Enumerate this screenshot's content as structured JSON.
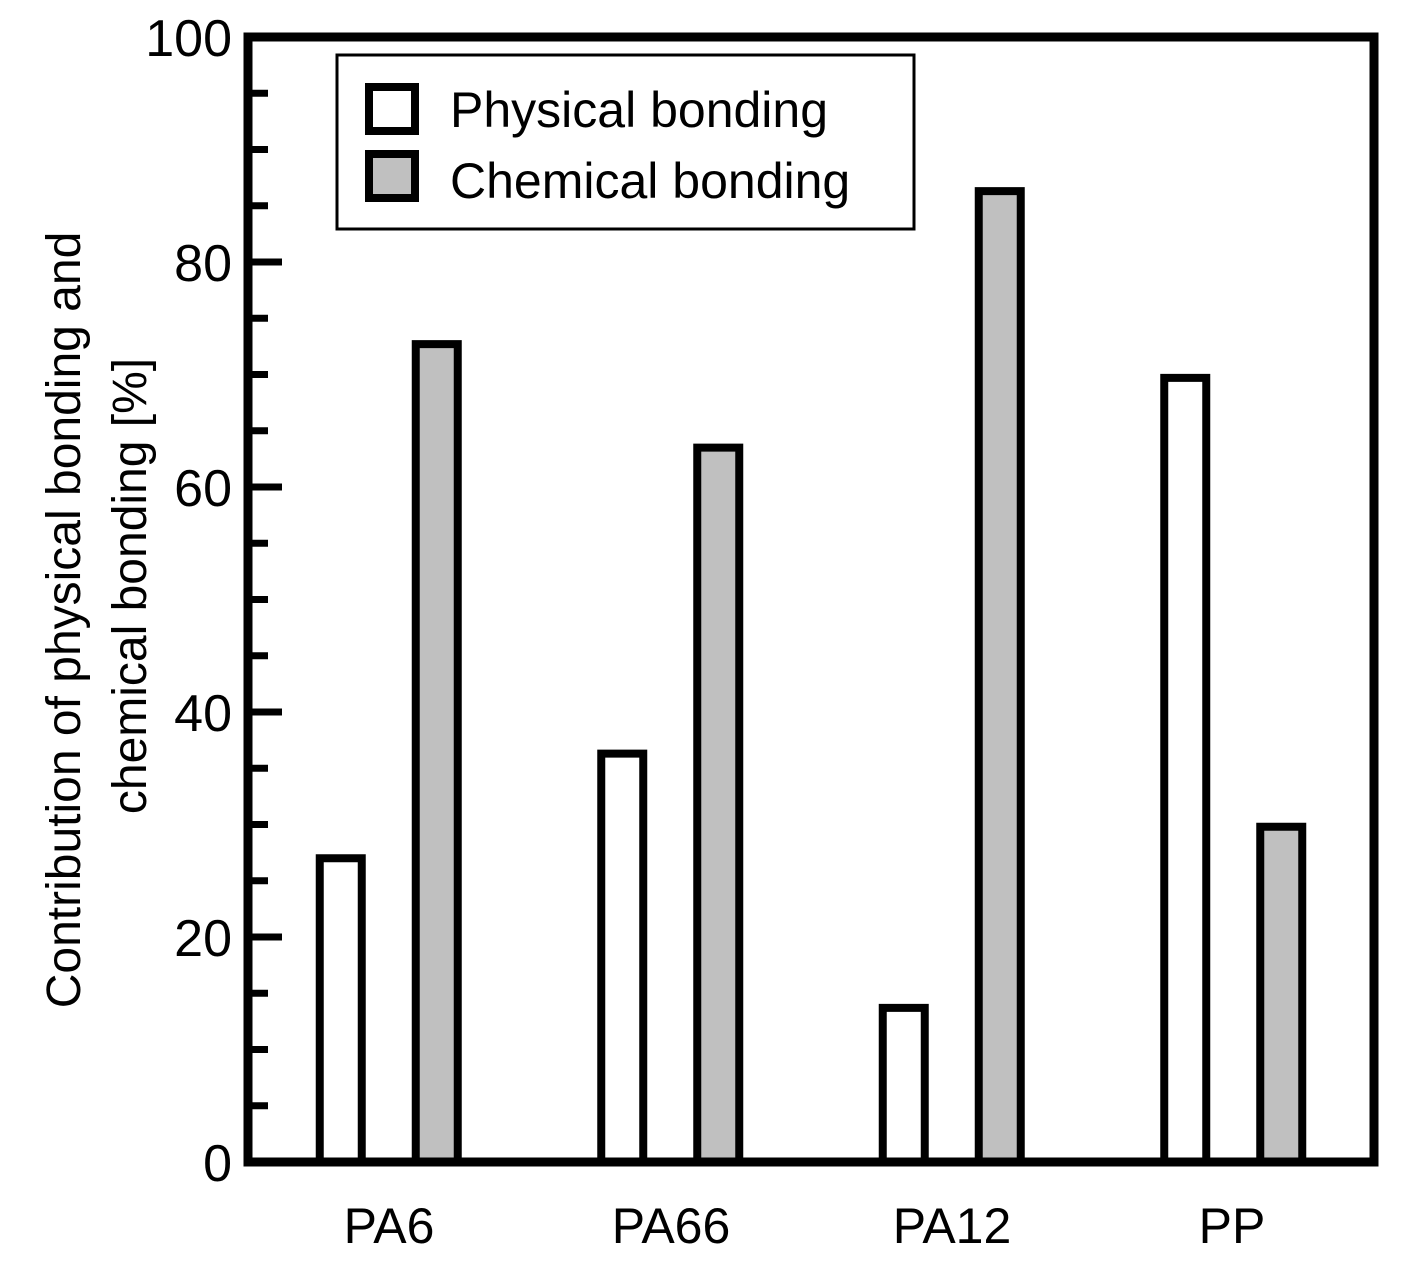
{
  "chart_data": {
    "type": "bar",
    "title": "",
    "xlabel": "",
    "ylabel_lines": [
      "Contribution of physical bonding and",
      "chemical bonding [%]"
    ],
    "ylim": [
      0,
      100
    ],
    "major_ticks": [
      "0",
      "20",
      "40",
      "60",
      "80",
      "100"
    ],
    "minor_tick_step": 5,
    "grid": false,
    "legend_position": "top-left",
    "categories": [
      "PA6",
      "PA66",
      "PA12",
      "PP"
    ],
    "series": [
      {
        "name": "Physical bonding",
        "fill": "#ffffff",
        "values": [
          27,
          36.3,
          13.7,
          69.7
        ]
      },
      {
        "name": "Chemical bonding",
        "fill": "#c0c0c0",
        "values": [
          72.7,
          63.5,
          86.3,
          29.8
        ]
      }
    ]
  }
}
